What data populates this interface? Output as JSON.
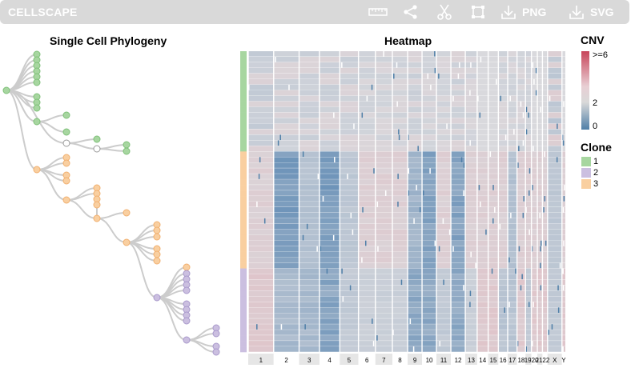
{
  "toolbar": {
    "app_title": "CELLSCAPE",
    "png_label": "PNG",
    "svg_label": "SVG"
  },
  "tree": {
    "title": "Single Cell Phylogeny"
  },
  "heatmap": {
    "title": "Heatmap",
    "chromosomes": [
      "1",
      "2",
      "3",
      "4",
      "5",
      "6",
      "7",
      "8",
      "9",
      "10",
      "11",
      "12",
      "13",
      "14",
      "15",
      "16",
      "17",
      "18",
      "19",
      "20",
      "21",
      "22",
      "X",
      "Y"
    ],
    "chromosome_labels": [
      "1",
      "2",
      "3",
      "4",
      "5",
      "6",
      "7",
      "8",
      "9",
      "10",
      "11",
      "12",
      "13",
      "14",
      "15",
      "16",
      "17",
      "18",
      "1920",
      "2122",
      "X",
      "Y"
    ],
    "clone_rows": [
      {
        "clone": "1",
        "rows": 18
      },
      {
        "clone": "3",
        "rows": 21
      },
      {
        "clone": "2",
        "rows": 15
      }
    ]
  },
  "legend": {
    "cnv_title": "CNV",
    "cnv_max_label": ">=6",
    "cnv_mid_label": "2",
    "cnv_min_label": "0",
    "clone_title": "Clone",
    "clones": [
      {
        "label": "1",
        "color": "#a7d6a0"
      },
      {
        "label": "2",
        "color": "#cbbfe0"
      },
      {
        "label": "3",
        "color": "#f9cfa0"
      }
    ]
  },
  "colors": {
    "toolbar_bg": "#d9d9d9",
    "cnv_high": "#c8455a",
    "cnv_neutral": "#d9d9d9",
    "cnv_low": "#4f7fa8",
    "tree_edge": "#cccccc"
  }
}
